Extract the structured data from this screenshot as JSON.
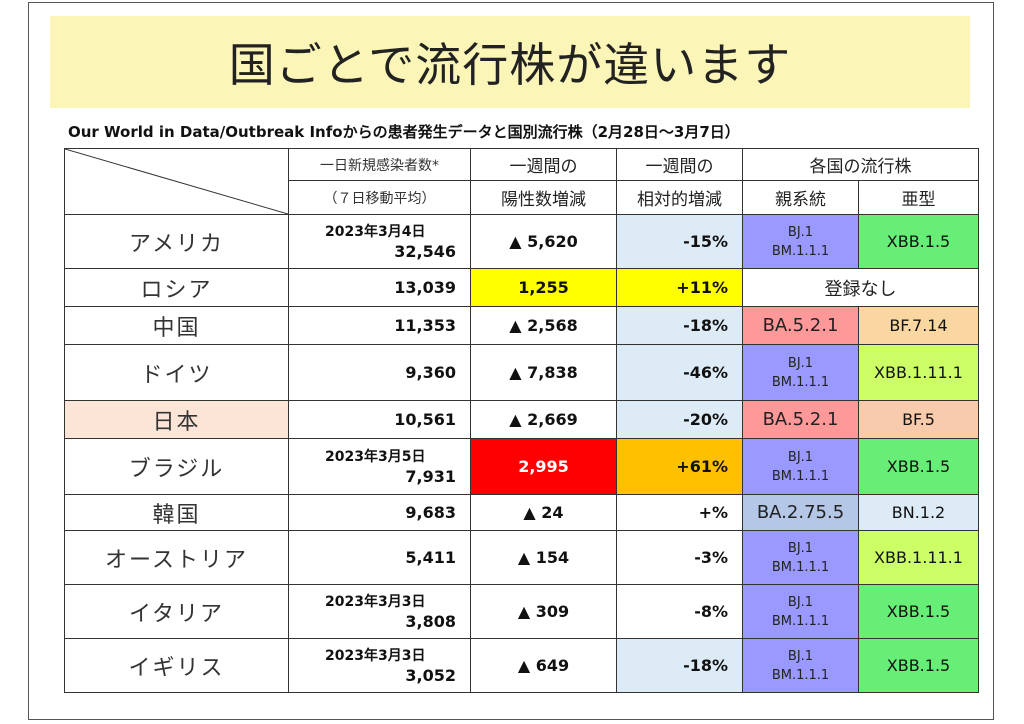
{
  "slide": {
    "title": "国ごとで流行株が違います",
    "caption": "Our World in Data/Outbreak Infoからの患者発生データと国別流行株（2月28日〜3月7日）"
  },
  "table": {
    "headers": {
      "new_cases_l1": "一日新規感染者数*",
      "new_cases_l2": "（７日移動平均）",
      "weekly_l1": "一週間の",
      "weekly_l2": "陽性数増減",
      "relative_l1": "一週間の",
      "relative_l2": "相対的増減",
      "lineage": "各国の流行株",
      "parent": "親系統",
      "subtype": "亜型"
    },
    "rows": [
      {
        "country": "アメリカ",
        "date": "2023年3月4日",
        "cases": "32,546",
        "weekly": "▲ 5,620",
        "relative": "-15%",
        "parent1": "BJ.1",
        "parent2": "BM.1.1.1",
        "subtype": "XBB.1.5"
      },
      {
        "country": "ロシア",
        "date": "",
        "cases": "13,039",
        "weekly": "1,255",
        "relative": "+11%",
        "lineage_none": "登録なし"
      },
      {
        "country": "中国",
        "date": "",
        "cases": "11,353",
        "weekly": "▲ 2,568",
        "relative": "-18%",
        "parent_single": "BA.5.2.1",
        "subtype": "BF.7.14"
      },
      {
        "country": "ドイツ",
        "date": "",
        "cases": "9,360",
        "weekly": "▲ 7,838",
        "relative": "-46%",
        "parent1": "BJ.1",
        "parent2": "BM.1.1.1",
        "subtype": "XBB.1.11.1"
      },
      {
        "country": "日本",
        "date": "",
        "cases": "10,561",
        "weekly": "▲ 2,669",
        "relative": "-20%",
        "parent_single": "BA.5.2.1",
        "subtype": "BF.5"
      },
      {
        "country": "ブラジル",
        "date": "2023年3月5日",
        "cases": "7,931",
        "weekly": "2,995",
        "relative": "+61%",
        "parent1": "BJ.1",
        "parent2": "BM.1.1.1",
        "subtype": "XBB.1.5"
      },
      {
        "country": "韓国",
        "date": "",
        "cases": "9,683",
        "weekly": "▲ 24",
        "relative": "+%",
        "parent_single": "BA.2.75.5",
        "subtype": "BN.1.2"
      },
      {
        "country": "オーストリア",
        "date": "",
        "cases": "5,411",
        "weekly": "▲ 154",
        "relative": "-3%",
        "parent1": "BJ.1",
        "parent2": "BM.1.1.1",
        "subtype": "XBB.1.11.1"
      },
      {
        "country": "イタリア",
        "date": "2023年3月3日",
        "cases": "3,808",
        "weekly": "▲ 309",
        "relative": "-8%",
        "parent1": "BJ.1",
        "parent2": "BM.1.1.1",
        "subtype": "XBB.1.5"
      },
      {
        "country": "イギリス",
        "date": "2023年3月3日",
        "cases": "3,052",
        "weekly": "▲ 649",
        "relative": "-18%",
        "parent1": "BJ.1",
        "parent2": "BM.1.1.1",
        "subtype": "XBB.1.5"
      }
    ]
  },
  "colors": {
    "title_band": "#fbf6b7",
    "light_blue": "#ddebf7",
    "periwinkle": "#9999ff",
    "green": "#66ee77",
    "lime": "#ccff66",
    "yellow": "#ffff00",
    "red": "#ff0000",
    "orange": "#ffc000",
    "salmon": "#ff9999",
    "peach": "#fad7a0",
    "apricot": "#f8cbad",
    "blush": "#fce4d6",
    "steel": "#b4c7e7"
  }
}
